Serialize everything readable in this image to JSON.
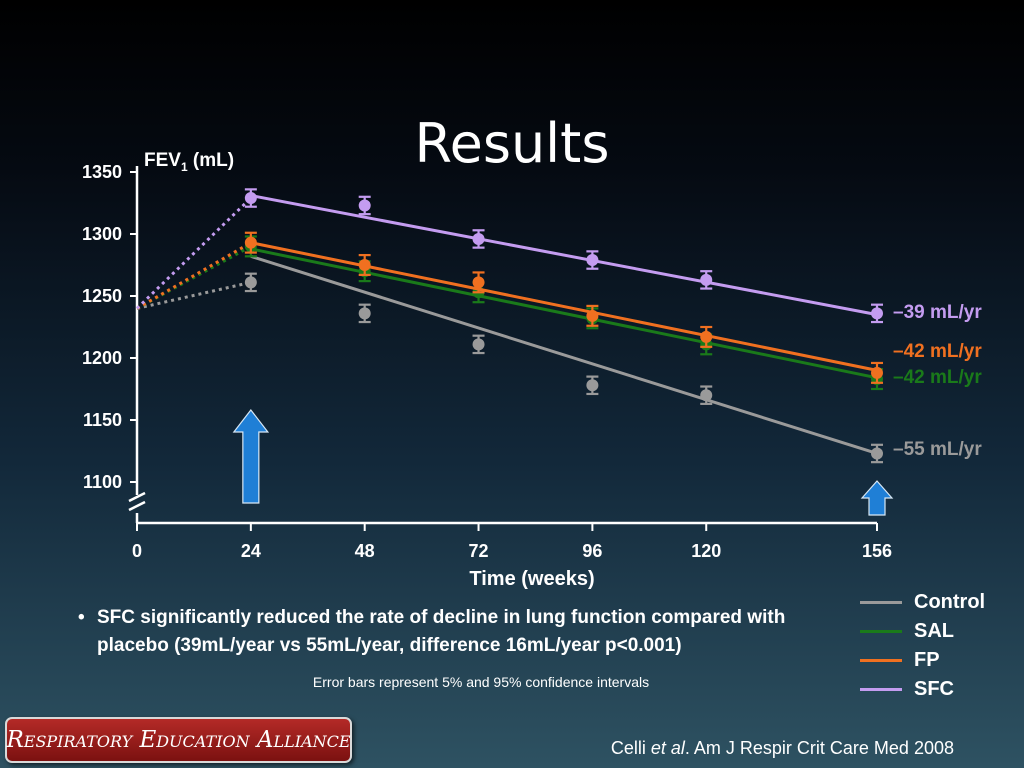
{
  "slide": {
    "title": "Results"
  },
  "chart_data": {
    "type": "line",
    "ylabel": "FEV",
    "ylabel_sub": "1",
    "ylabel_unit": "(mL)",
    "xlabel": "Time (weeks)",
    "x_ticks": [
      0,
      24,
      48,
      72,
      96,
      120,
      156
    ],
    "y_ticks": [
      1100,
      1150,
      1200,
      1250,
      1300,
      1350
    ],
    "y_axis_break": true,
    "grid": false,
    "baseline": {
      "x": 0,
      "y": 1240
    },
    "series": [
      {
        "name": "Control",
        "color": "#9a9a9a",
        "slope_label": "–55 mL/yr",
        "x": [
          24,
          48,
          72,
          96,
          120,
          156
        ],
        "y": [
          1261,
          1236,
          1211,
          1178,
          1170,
          1123
        ],
        "ci": 7,
        "fit": [
          1282,
          1123
        ]
      },
      {
        "name": "SAL",
        "color": "#1a7a1a",
        "slope_label": "–42 mL/yr",
        "x": [
          24,
          48,
          72,
          96,
          120,
          156
        ],
        "y": [
          1290,
          1270,
          1253,
          1232,
          1211,
          1183
        ],
        "ci": 8,
        "fit": [
          1288,
          1184
        ]
      },
      {
        "name": "FP",
        "color": "#f07020",
        "slope_label": "–42 mL/yr",
        "x": [
          24,
          48,
          72,
          96,
          120,
          156
        ],
        "y": [
          1293,
          1275,
          1261,
          1234,
          1217,
          1188
        ],
        "ci": 8,
        "fit": [
          1293,
          1190
        ]
      },
      {
        "name": "SFC",
        "color": "#c49cf0",
        "slope_label": "–39 mL/yr",
        "x": [
          24,
          48,
          72,
          96,
          120,
          156
        ],
        "y": [
          1329,
          1323,
          1296,
          1279,
          1263,
          1236
        ],
        "ci": 7,
        "fit": [
          1331,
          1235
        ]
      }
    ],
    "treatment_arrows": [
      24,
      156
    ]
  },
  "bullet": "SFC significantly reduced the rate of decline in lung function compared with placebo (39mL/year vs 55mL/year, difference 16mL/year p<0.001)",
  "note": "Error bars represent 5% and 95% confidence intervals",
  "logo_text": "Respiratory Education Alliance",
  "citation": {
    "authors": "Celli",
    "et_al": "et al",
    "journal": ". Am J Respir Crit Care Med 2008"
  },
  "colors": {
    "control": "#9a9a9a",
    "sal": "#1a7a1a",
    "fp": "#f07020",
    "sfc": "#c49cf0",
    "arrow": "#1f7fd6"
  }
}
